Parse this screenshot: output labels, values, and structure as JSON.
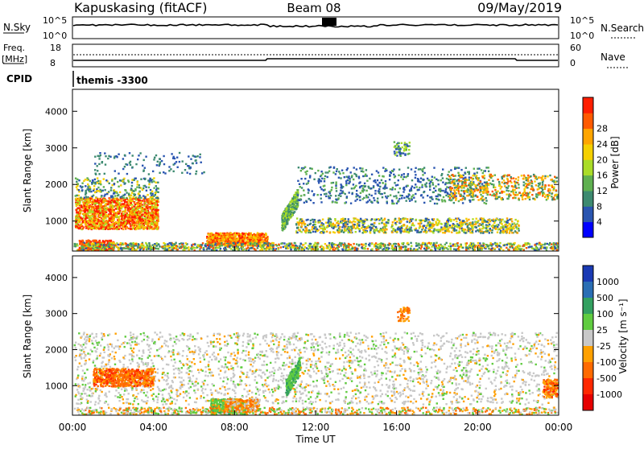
{
  "header": {
    "station": "Kapuskasing (fitACF)",
    "beam": "Beam 08",
    "date": "09/May/2019"
  },
  "top_panels": {
    "nsky_label": "N.Sky",
    "nsky_ticks": [
      "10^5",
      "10^0"
    ],
    "nsearch_label": "N.Search",
    "nsearch_ticks": [
      "10^5",
      "10^0"
    ],
    "freq_label": "Freq.",
    "freq_unit": "[MHz]",
    "freq_ticks": [
      "18",
      "8"
    ],
    "nave_label": "Nave",
    "nave_ticks": [
      "60",
      "0"
    ],
    "cpid_label": "CPID",
    "cpid_value": "themis -3300"
  },
  "chart_data": [
    {
      "type": "heatmap",
      "name": "power-panel",
      "ylabel": "Slant Range [km]",
      "yticks": [
        "1000",
        "2000",
        "3000",
        "4000"
      ],
      "ylim": [
        180,
        4600
      ],
      "colorbar_label": "Power [dB]",
      "colorbar_ticks": [
        "4",
        "8",
        "12",
        "16",
        "20",
        "24",
        "28"
      ],
      "colors": [
        "#0000ff",
        "#2a55b0",
        "#3d8a70",
        "#5fb050",
        "#aadc28",
        "#f5d000",
        "#ffa500",
        "#ff5a00",
        "#ff1e00"
      ],
      "features": [
        {
          "x": [
            0.1,
            4.0
          ],
          "y": [
            900,
            1600
          ],
          "level": "high"
        },
        {
          "x": [
            6.4,
            9.6
          ],
          "y": [
            300,
            800
          ],
          "level": "high"
        },
        {
          "x": [
            10.3,
            11.0
          ],
          "y": [
            600,
            2000
          ],
          "level": "medium"
        },
        {
          "x": [
            11.0,
            20.5
          ],
          "y": [
            700,
            2600
          ],
          "level": "low"
        },
        {
          "x": [
            18.5,
            20.0
          ],
          "y": [
            1700,
            2300
          ],
          "level": "medium"
        },
        {
          "x": [
            0,
            24
          ],
          "y": [
            180,
            500
          ],
          "level": "mixed"
        }
      ]
    },
    {
      "type": "heatmap",
      "name": "velocity-panel",
      "ylabel": "Slant Range [km]",
      "yticks": [
        "1000",
        "2000",
        "3000",
        "4000"
      ],
      "ylim": [
        180,
        4600
      ],
      "colorbar_label": "Velocity [m s⁻¹]",
      "colorbar_ticks": [
        "1000",
        "500",
        "100",
        "25",
        "-25",
        "-100",
        "-500",
        "-1000"
      ],
      "colors": [
        "#1a3ab4",
        "#2a6eb4",
        "#33a060",
        "#60cc40",
        "#c8c8c8",
        "#ffa000",
        "#ff6a00",
        "#ff2800",
        "#e60000"
      ],
      "features": [
        {
          "x": [
            0.1,
            4.0
          ],
          "y": [
            900,
            1700
          ],
          "level": "negative"
        },
        {
          "x": [
            6.8,
            8.4
          ],
          "y": [
            250,
            700
          ],
          "level": "positive"
        },
        {
          "x": [
            10.5,
            11.2
          ],
          "y": [
            700,
            2000
          ],
          "level": "positive"
        },
        {
          "x": [
            0,
            24
          ],
          "y": [
            500,
            2600
          ],
          "level": "near-zero"
        }
      ]
    }
  ],
  "x_axis": {
    "ticks": [
      "00:00",
      "04:00",
      "08:00",
      "12:00",
      "16:00",
      "20:00",
      "00:00"
    ],
    "label": "Time UT"
  }
}
